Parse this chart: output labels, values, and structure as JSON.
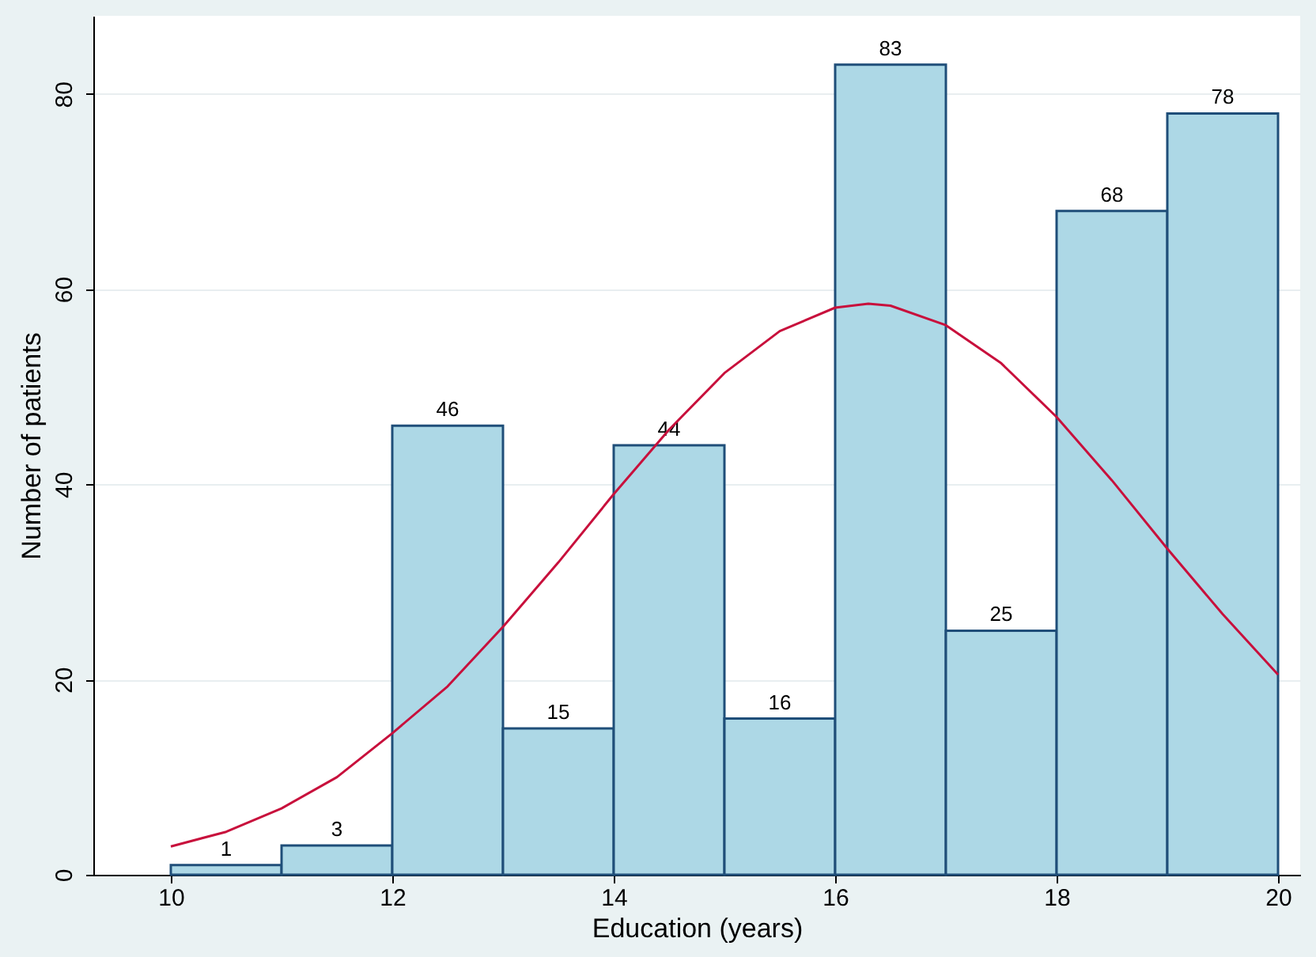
{
  "chart_data": {
    "type": "histogram",
    "xlabel": "Education (years)",
    "ylabel": "Number of patients",
    "bins": [
      10,
      11,
      12,
      13,
      14,
      15,
      16,
      17,
      18,
      19,
      20
    ],
    "values": [
      1,
      3,
      46,
      15,
      44,
      16,
      83,
      25,
      68,
      78
    ],
    "color": "#add8e6",
    "value_labels": [
      "1",
      "3",
      "46",
      "15",
      "44",
      "16",
      "83",
      "25",
      "68",
      "78"
    ],
    "series": [
      {
        "type": "line",
        "color": "#c8103c",
        "x": [
          10,
          10.5,
          11,
          11.5,
          12,
          12.5,
          13,
          13.5,
          14,
          14.5,
          15,
          15.5,
          16,
          16.3,
          16.5,
          17,
          17.5,
          18,
          18.5,
          19,
          19.5,
          20
        ],
        "values": [
          2.9,
          4.4,
          6.8,
          10,
          14.5,
          19.3,
          25.4,
          32,
          39,
          45.6,
          51.4,
          55.7,
          58.1,
          58.5,
          58.3,
          56.3,
          52.4,
          46.9,
          40.4,
          33.4,
          26.7,
          20.5
        ]
      }
    ],
    "xlim": [
      9.3,
      20.2
    ],
    "xticks": [
      10,
      12,
      14,
      16,
      18,
      20
    ],
    "ylim": [
      0,
      88
    ],
    "yticks": [
      0,
      20,
      40,
      60,
      80
    ],
    "grid": "y"
  }
}
